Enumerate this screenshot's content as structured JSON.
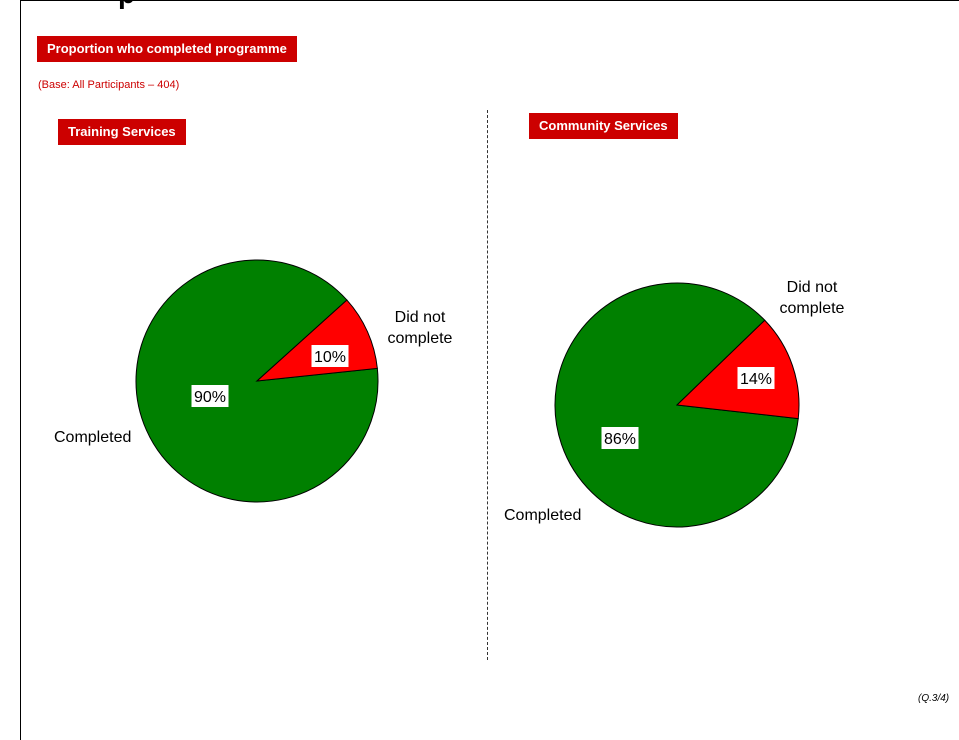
{
  "header": {
    "title_fragment": "p",
    "section_label": "Proportion who completed programme",
    "base_note": "(Base: All Participants – 404)"
  },
  "footnote": "(Q.3/4)",
  "colors": {
    "accent": "#cc0000",
    "completed": "#008000",
    "did_not_complete": "#ff0000"
  },
  "chart_data": [
    {
      "type": "pie",
      "title": "Training Services",
      "slices": [
        {
          "label": "Completed",
          "value": 90,
          "display": "90%",
          "color": "#008000"
        },
        {
          "label": "Did not complete",
          "value": 10,
          "display": "10%",
          "color": "#ff0000"
        }
      ]
    },
    {
      "type": "pie",
      "title": "Community Services",
      "slices": [
        {
          "label": "Completed",
          "value": 86,
          "display": "86%",
          "color": "#008000"
        },
        {
          "label": "Did not complete",
          "value": 14,
          "display": "14%",
          "color": "#ff0000"
        }
      ]
    }
  ]
}
